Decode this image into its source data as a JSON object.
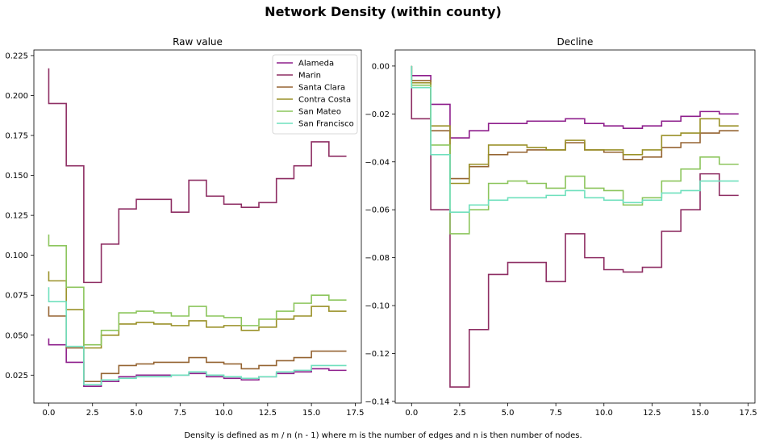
{
  "figure": {
    "title": "Network Density (within county)",
    "footnote": "Density is defined as m / n (n - 1) where m is the number of edges and n is then number of nodes."
  },
  "colors": {
    "Alameda": "#8e1f8c",
    "Marin": "#8e2e63",
    "Santa Clara": "#956432",
    "Contra Costa": "#9a9128",
    "San Mateo": "#8cc55c",
    "San Francisco": "#6fe0bd"
  },
  "chart_data": [
    {
      "type": "line",
      "step": "post",
      "title": "Raw value",
      "xlabel": "",
      "ylabel": "",
      "xlim": [
        -0.85,
        17.85
      ],
      "ylim": [
        0.0075,
        0.2285
      ],
      "xticks": [
        "0.0",
        "2.5",
        "5.0",
        "7.5",
        "10.0",
        "12.5",
        "15.0",
        "17.5"
      ],
      "yticks": [
        "0.025",
        "0.050",
        "0.075",
        "0.100",
        "0.125",
        "0.150",
        "0.175",
        "0.200",
        "0.225"
      ],
      "legend": "top-right",
      "x": [
        0,
        1,
        2,
        3,
        4,
        5,
        6,
        7,
        8,
        9,
        10,
        11,
        12,
        13,
        14,
        15,
        16,
        17
      ],
      "series": [
        {
          "name": "Alameda",
          "values": [
            0.044,
            0.033,
            0.018,
            0.021,
            0.024,
            0.025,
            0.025,
            0.025,
            0.026,
            0.024,
            0.023,
            0.022,
            0.024,
            0.026,
            0.027,
            0.029,
            0.028,
            0.028
          ],
          "start": 0.048
        },
        {
          "name": "Marin",
          "values": [
            0.195,
            0.156,
            0.083,
            0.107,
            0.129,
            0.135,
            0.135,
            0.127,
            0.147,
            0.137,
            0.132,
            0.13,
            0.133,
            0.148,
            0.156,
            0.171,
            0.162,
            0.162
          ],
          "start": 0.217
        },
        {
          "name": "Santa Clara",
          "values": [
            0.062,
            0.042,
            0.021,
            0.026,
            0.031,
            0.032,
            0.033,
            0.033,
            0.036,
            0.033,
            0.032,
            0.029,
            0.031,
            0.034,
            0.036,
            0.04,
            0.04,
            0.04
          ],
          "start": 0.068
        },
        {
          "name": "Contra Costa",
          "values": [
            0.084,
            0.066,
            0.042,
            0.05,
            0.057,
            0.058,
            0.057,
            0.056,
            0.059,
            0.055,
            0.056,
            0.053,
            0.055,
            0.06,
            0.062,
            0.068,
            0.065,
            0.065
          ],
          "start": 0.09
        },
        {
          "name": "San Mateo",
          "values": [
            0.106,
            0.08,
            0.044,
            0.053,
            0.064,
            0.065,
            0.064,
            0.062,
            0.068,
            0.062,
            0.061,
            0.056,
            0.06,
            0.065,
            0.07,
            0.075,
            0.072,
            0.072
          ],
          "start": 0.113
        },
        {
          "name": "San Francisco",
          "values": [
            0.071,
            0.043,
            0.019,
            0.022,
            0.023,
            0.024,
            0.024,
            0.025,
            0.027,
            0.025,
            0.024,
            0.023,
            0.024,
            0.027,
            0.028,
            0.031,
            0.031,
            0.031
          ],
          "start": 0.08
        }
      ]
    },
    {
      "type": "line",
      "step": "post",
      "title": "Decline",
      "xlabel": "",
      "ylabel": "",
      "xlim": [
        -0.85,
        17.85
      ],
      "ylim": [
        -0.1407,
        0.0067
      ],
      "xticks": [
        "0.0",
        "2.5",
        "5.0",
        "7.5",
        "10.0",
        "12.5",
        "15.0",
        "17.5"
      ],
      "yticks": [
        "0.00",
        "−0.02",
        "−0.04",
        "−0.06",
        "−0.08",
        "−0.10",
        "−0.12",
        "−0.14"
      ],
      "x": [
        0,
        1,
        2,
        3,
        4,
        5,
        6,
        7,
        8,
        9,
        10,
        11,
        12,
        13,
        14,
        15,
        16,
        17
      ],
      "series": [
        {
          "name": "Alameda",
          "values": [
            -0.004,
            -0.016,
            -0.03,
            -0.027,
            -0.024,
            -0.024,
            -0.023,
            -0.023,
            -0.022,
            -0.024,
            -0.025,
            -0.026,
            -0.025,
            -0.023,
            -0.021,
            -0.019,
            -0.02,
            -0.02
          ],
          "start": 0.0
        },
        {
          "name": "Marin",
          "values": [
            -0.022,
            -0.06,
            -0.134,
            -0.11,
            -0.087,
            -0.082,
            -0.082,
            -0.09,
            -0.07,
            -0.08,
            -0.085,
            -0.086,
            -0.084,
            -0.069,
            -0.06,
            -0.045,
            -0.054,
            -0.054
          ],
          "start": 0.0
        },
        {
          "name": "Santa Clara",
          "values": [
            -0.006,
            -0.027,
            -0.047,
            -0.042,
            -0.037,
            -0.036,
            -0.035,
            -0.035,
            -0.032,
            -0.035,
            -0.036,
            -0.039,
            -0.038,
            -0.034,
            -0.032,
            -0.028,
            -0.027,
            -0.027
          ],
          "start": 0.0
        },
        {
          "name": "Contra Costa",
          "values": [
            -0.007,
            -0.025,
            -0.049,
            -0.041,
            -0.033,
            -0.033,
            -0.034,
            -0.035,
            -0.031,
            -0.035,
            -0.035,
            -0.037,
            -0.035,
            -0.029,
            -0.028,
            -0.022,
            -0.025,
            -0.025
          ],
          "start": 0.0
        },
        {
          "name": "San Mateo",
          "values": [
            -0.008,
            -0.033,
            -0.07,
            -0.06,
            -0.049,
            -0.048,
            -0.049,
            -0.051,
            -0.046,
            -0.051,
            -0.052,
            -0.058,
            -0.055,
            -0.048,
            -0.043,
            -0.038,
            -0.041,
            -0.041
          ],
          "start": 0.0
        },
        {
          "name": "San Francisco",
          "values": [
            -0.009,
            -0.037,
            -0.061,
            -0.058,
            -0.056,
            -0.055,
            -0.055,
            -0.054,
            -0.052,
            -0.055,
            -0.056,
            -0.057,
            -0.056,
            -0.053,
            -0.052,
            -0.048,
            -0.048,
            -0.048
          ],
          "start": 0.0
        }
      ]
    }
  ]
}
